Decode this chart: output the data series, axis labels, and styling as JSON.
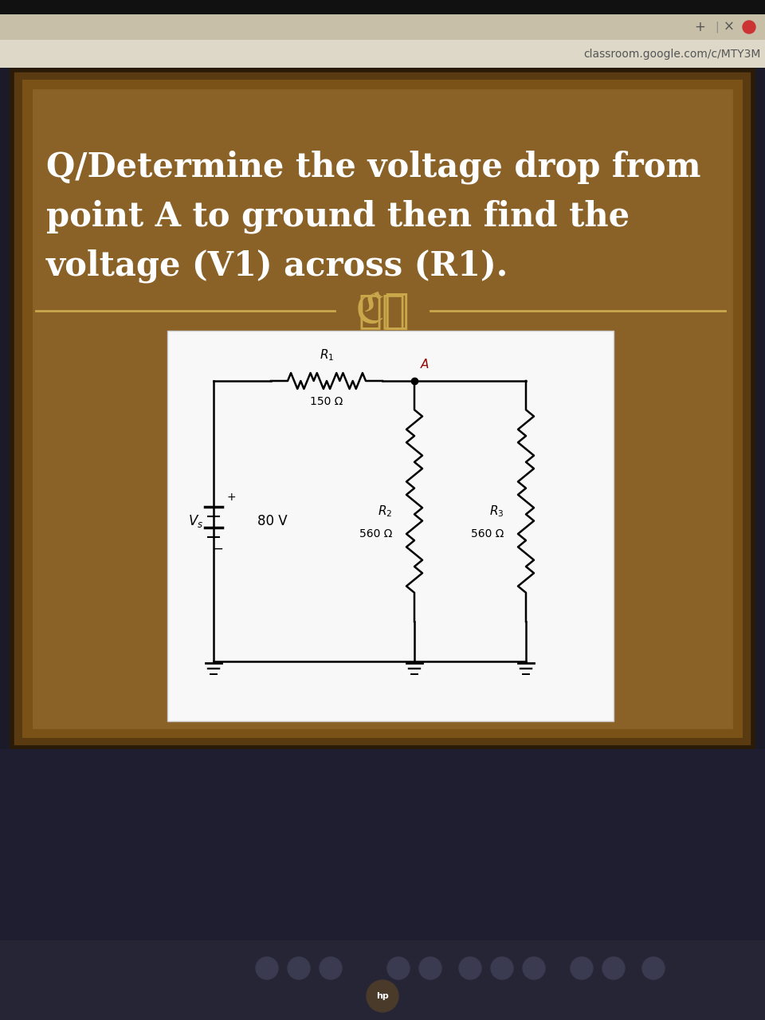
{
  "bg_laptop_dark": "#1a1a28",
  "bg_browser_bar": "#d4c9b0",
  "bg_brown_outer": "#3a2810",
  "bg_brown_inner": "#7a5520",
  "bg_panel_light": "#c8a060",
  "text_color": "#ffffff",
  "title_text_line1": "Q/Determine the voltage drop from",
  "title_text_line2": "point A to ground then find the",
  "title_text_line3": "voltage (V1) across (R1).",
  "title_fontsize": 30,
  "circuit_bg": "#f8f8f8",
  "R1_label": "$R_1$",
  "R1_val": "150 Ω",
  "R2_label": "$R_2$",
  "R2_val": "560 Ω",
  "R3_label": "$R_3$",
  "R3_val": "560 Ω",
  "Vs_label": "$V_s$",
  "Vs_val": "80 V",
  "node_A_label": "A",
  "divider_color": "#c8a84b",
  "url_text": "classroom.google.com/c/MTY3M",
  "url_color": "#555555",
  "url_fontsize": 10,
  "taskbar_color": "#2a2a3a",
  "bottom_dark": "#1e1e30"
}
